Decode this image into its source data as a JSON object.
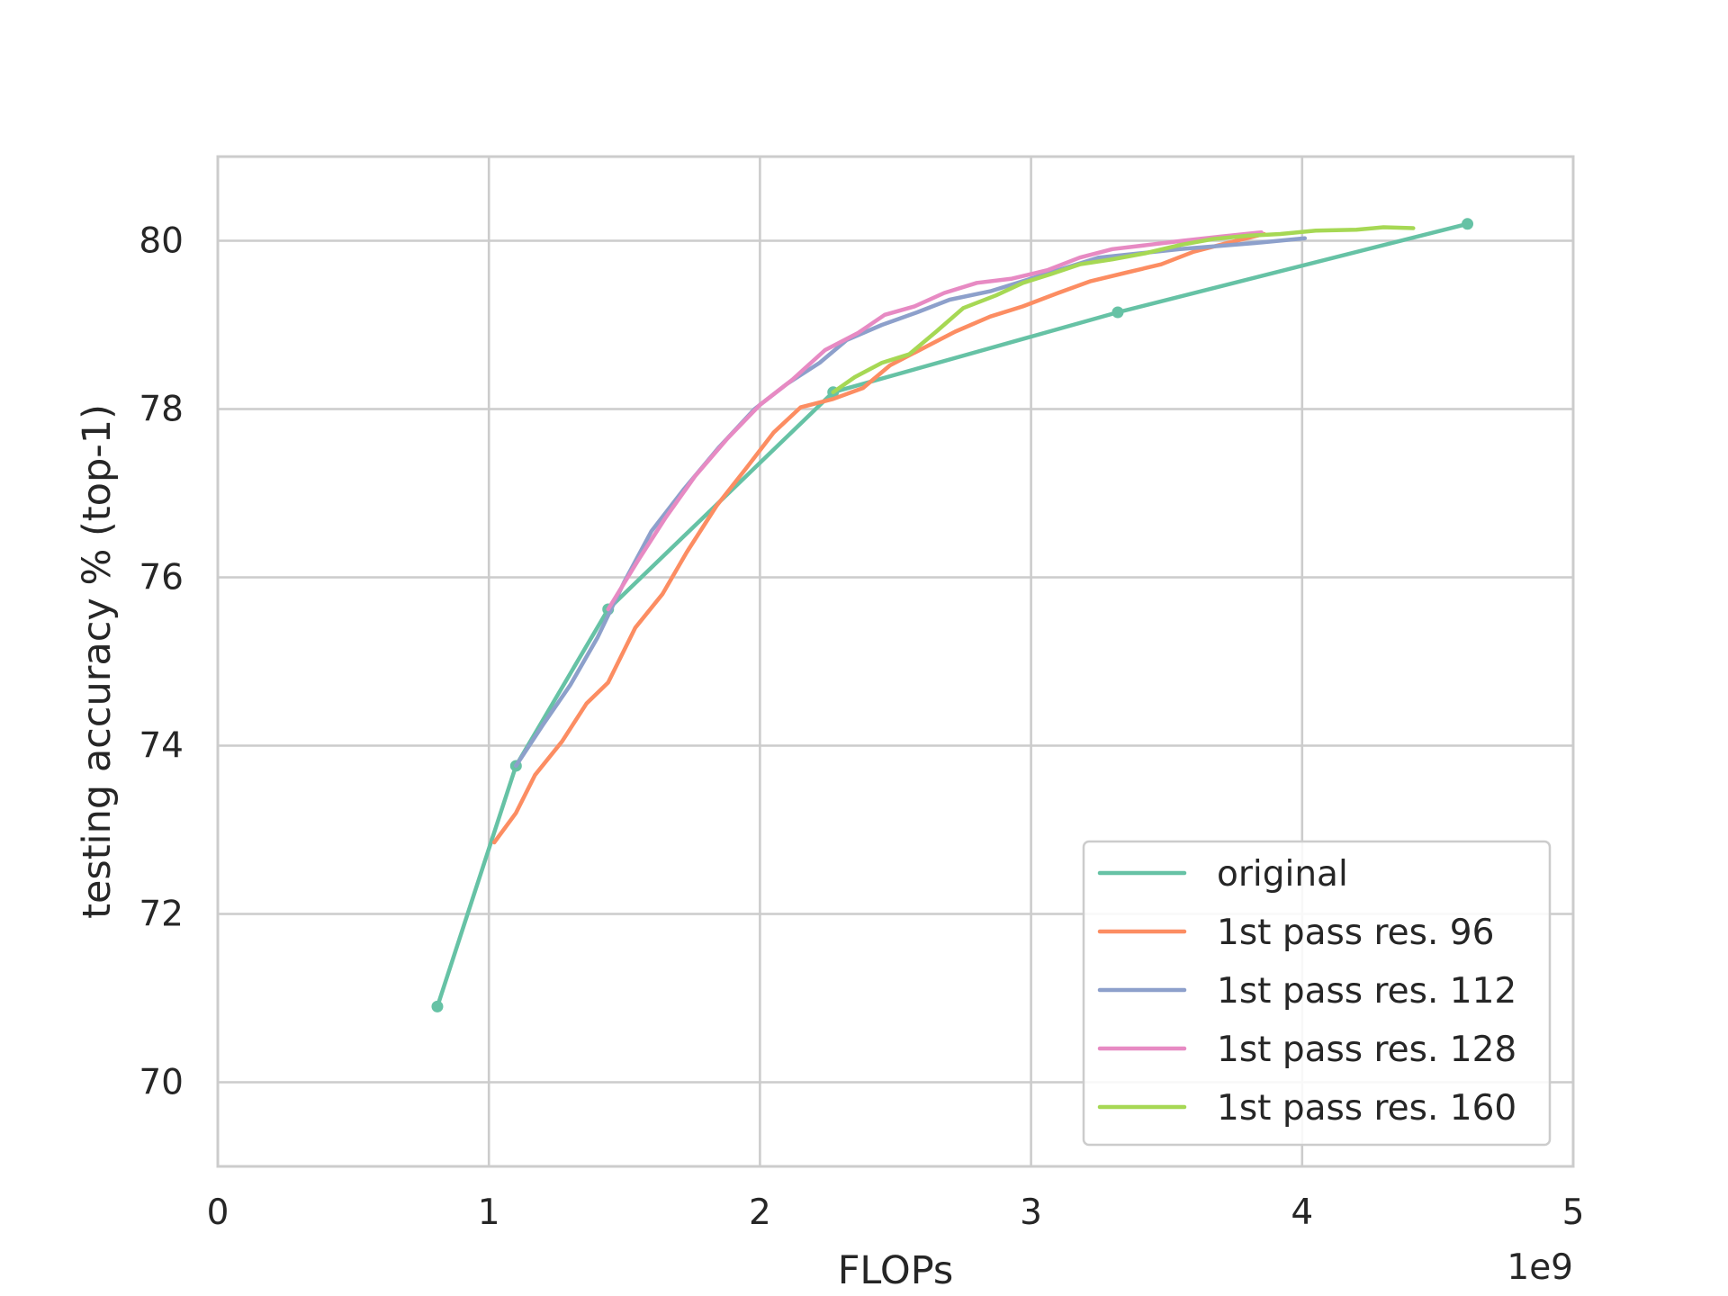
{
  "chart_data": {
    "type": "line",
    "title": "",
    "xlabel": "FLOPs",
    "ylabel": "testing accuracy % (top-1)",
    "x_offset_label": "1e9",
    "xlim": [
      0,
      5
    ],
    "ylim": [
      69,
      81
    ],
    "x_ticks": [
      "0",
      "1",
      "2",
      "3",
      "4",
      "5"
    ],
    "y_ticks": [
      "70",
      "72",
      "74",
      "76",
      "78",
      "80"
    ],
    "grid": true,
    "legend_position": "bottom-right",
    "series": [
      {
        "name": "original",
        "color": "#66c2a5",
        "markers": true,
        "x": [
          0.81,
          1.1,
          1.44,
          2.27,
          3.32,
          4.61
        ],
        "y": [
          70.9,
          73.76,
          75.62,
          78.2,
          79.15,
          80.2
        ]
      },
      {
        "name": "1st pass res. 96",
        "color": "#fc8d62",
        "markers": false,
        "x": [
          1.02,
          1.1,
          1.17,
          1.27,
          1.36,
          1.44,
          1.54,
          1.64,
          1.73,
          1.84,
          1.95,
          2.05,
          2.15,
          2.27,
          2.38,
          2.48,
          2.6,
          2.72,
          2.85,
          2.97,
          3.1,
          3.22,
          3.35,
          3.48,
          3.6,
          3.72,
          3.86
        ],
        "y": [
          72.85,
          73.2,
          73.65,
          74.05,
          74.5,
          74.75,
          75.4,
          75.8,
          76.3,
          76.85,
          77.3,
          77.72,
          78.02,
          78.12,
          78.25,
          78.52,
          78.72,
          78.92,
          79.1,
          79.22,
          79.38,
          79.52,
          79.62,
          79.72,
          79.87,
          79.97,
          80.08
        ]
      },
      {
        "name": "1st pass res. 112",
        "color": "#8da0cb",
        "markers": false,
        "x": [
          1.1,
          1.2,
          1.3,
          1.4,
          1.5,
          1.6,
          1.72,
          1.85,
          1.98,
          2.1,
          2.22,
          2.32,
          2.45,
          2.58,
          2.7,
          2.85,
          2.97,
          3.1,
          3.25,
          3.4,
          3.55,
          3.7,
          3.85,
          4.01
        ],
        "y": [
          73.76,
          74.25,
          74.72,
          75.28,
          75.95,
          76.55,
          77.05,
          77.55,
          78.0,
          78.3,
          78.55,
          78.82,
          79.0,
          79.15,
          79.3,
          79.4,
          79.52,
          79.65,
          79.8,
          79.85,
          79.9,
          79.94,
          79.98,
          80.03
        ]
      },
      {
        "name": "1st pass res. 128",
        "color": "#e78ac3",
        "markers": false,
        "x": [
          1.44,
          1.55,
          1.65,
          1.76,
          1.88,
          2.0,
          2.12,
          2.24,
          2.36,
          2.46,
          2.57,
          2.68,
          2.8,
          2.93,
          3.06,
          3.18,
          3.3,
          3.43,
          3.56,
          3.7,
          3.85
        ],
        "y": [
          75.62,
          76.2,
          76.7,
          77.2,
          77.65,
          78.05,
          78.35,
          78.7,
          78.9,
          79.12,
          79.22,
          79.38,
          79.5,
          79.55,
          79.65,
          79.8,
          79.9,
          79.95,
          80.0,
          80.05,
          80.1
        ]
      },
      {
        "name": "1st pass res. 160",
        "color": "#a6d854",
        "markers": false,
        "x": [
          2.27,
          2.35,
          2.45,
          2.55,
          2.65,
          2.75,
          2.87,
          2.97,
          3.07,
          3.18,
          3.3,
          3.42,
          3.55,
          3.67,
          3.8,
          3.92,
          4.05,
          4.2,
          4.3,
          4.41
        ],
        "y": [
          78.2,
          78.38,
          78.55,
          78.65,
          78.92,
          79.2,
          79.35,
          79.5,
          79.6,
          79.72,
          79.78,
          79.85,
          79.95,
          80.02,
          80.06,
          80.08,
          80.12,
          80.13,
          80.16,
          80.15
        ]
      }
    ]
  }
}
